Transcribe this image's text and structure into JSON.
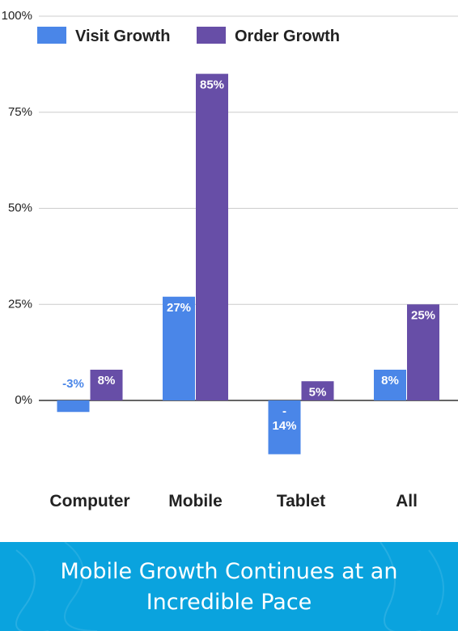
{
  "chart_data": {
    "type": "bar",
    "categories": [
      "Computer",
      "Mobile",
      "Tablet",
      "All"
    ],
    "series": [
      {
        "name": "Visit Growth",
        "color": "#4a86e8",
        "values": [
          -3,
          27,
          -14,
          8
        ],
        "labels": [
          "-3%",
          "27%",
          "-\n14%",
          "8%"
        ]
      },
      {
        "name": "Order Growth",
        "color": "#674ea7",
        "values": [
          8,
          85,
          5,
          25
        ],
        "labels": [
          "8%",
          "85%",
          "5%",
          "25%"
        ]
      }
    ],
    "ylim": [
      -20,
      100
    ],
    "yticks": [
      0,
      25,
      50,
      75,
      100
    ],
    "ytick_labels": [
      "0%",
      "25%",
      "50%",
      "75%",
      "100%"
    ],
    "legend_position": "top-left",
    "grid": true
  },
  "banner": {
    "line1": "Mobile Growth Continues at an",
    "line2": "Incredible Pace",
    "color": "#0aa3de"
  }
}
